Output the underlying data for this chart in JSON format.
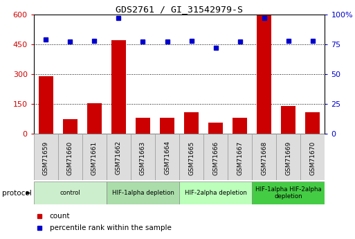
{
  "title": "GDS2761 / GI_31542979-S",
  "samples": [
    "GSM71659",
    "GSM71660",
    "GSM71661",
    "GSM71662",
    "GSM71663",
    "GSM71664",
    "GSM71665",
    "GSM71666",
    "GSM71667",
    "GSM71668",
    "GSM71669",
    "GSM71670"
  ],
  "counts": [
    290,
    75,
    155,
    470,
    80,
    80,
    110,
    55,
    80,
    595,
    140,
    110
  ],
  "percentile_ranks": [
    79,
    77,
    78,
    97,
    77,
    77,
    78,
    72,
    77,
    97,
    78,
    78
  ],
  "left_ylim": [
    0,
    600
  ],
  "right_ylim": [
    0,
    100
  ],
  "left_yticks": [
    0,
    150,
    300,
    450,
    600
  ],
  "right_yticks": [
    0,
    25,
    50,
    75,
    100
  ],
  "right_yticklabels": [
    "0",
    "25",
    "50",
    "75",
    "100%"
  ],
  "bar_color": "#cc0000",
  "dot_color": "#0000cc",
  "protocol_groups": [
    {
      "label": "control",
      "start": 0,
      "end": 3,
      "color": "#cceecc"
    },
    {
      "label": "HIF-1alpha depletion",
      "start": 3,
      "end": 6,
      "color": "#aaddaa"
    },
    {
      "label": "HIF-2alpha depletion",
      "start": 6,
      "end": 9,
      "color": "#bbffbb"
    },
    {
      "label": "HIF-1alpha HIF-2alpha\ndepletion",
      "start": 9,
      "end": 12,
      "color": "#44cc44"
    }
  ],
  "sample_box_color": "#dddddd",
  "tick_label_color_left": "#cc0000",
  "tick_label_color_right": "#0000cc",
  "legend_count_label": "count",
  "legend_pct_label": "percentile rank within the sample"
}
